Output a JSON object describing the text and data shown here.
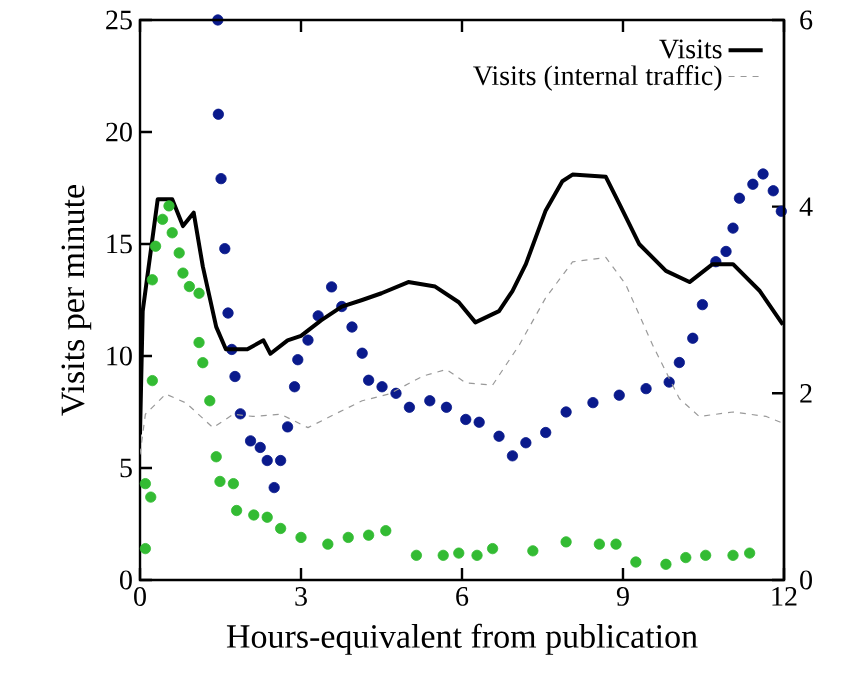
{
  "chart_data": {
    "type": "line",
    "xlabel": "Hours-equivalent from publication",
    "ylabel": "Visits per minute",
    "xlim": [
      0,
      12
    ],
    "xticks": [
      0,
      3,
      6,
      9,
      12
    ],
    "ylim": [
      0,
      25
    ],
    "yticks": [
      0,
      5,
      10,
      15,
      20,
      25
    ],
    "y2lim": [
      0,
      6
    ],
    "y2ticks": [
      0,
      2,
      4,
      6
    ],
    "legend": "top right",
    "grid": false,
    "series": [
      {
        "name": "Visits",
        "color": "#000000",
        "line_style": "solid",
        "marker": "none",
        "x": [
          0,
          0.05,
          0.33,
          0.6,
          0.8,
          1.0,
          1.17,
          1.42,
          1.6,
          2.0,
          2.3,
          2.43,
          2.75,
          3.0,
          3.38,
          3.76,
          4.14,
          4.5,
          5.0,
          5.5,
          5.94,
          6.25,
          6.69,
          6.94,
          7.19,
          7.56,
          7.87,
          8.06,
          8.68,
          8.93,
          9.3,
          9.8,
          10.24,
          10.67,
          11.05,
          11.55,
          11.98
        ],
        "values": [
          6.5,
          12,
          17,
          17,
          15.8,
          16.4,
          14,
          11.3,
          10.3,
          10.3,
          10.7,
          10.1,
          10.7,
          10.9,
          11.6,
          12.2,
          12.5,
          12.8,
          13.3,
          13.1,
          12.4,
          11.5,
          12.0,
          12.9,
          14.1,
          16.5,
          17.8,
          18.1,
          18.0,
          16.8,
          15.0,
          13.8,
          13.3,
          14.1,
          14.1,
          12.9,
          11.4
        ]
      },
      {
        "name": "Visits (internal traffic)",
        "color": "#999999",
        "line_style": "dashed",
        "marker": "none",
        "x": [
          0,
          0.1,
          0.48,
          0.86,
          1.36,
          1.74,
          2.1,
          2.62,
          3.13,
          3.63,
          4.14,
          4.64,
          5.27,
          5.71,
          6.07,
          6.57,
          7.07,
          7.56,
          8.06,
          8.68,
          9.05,
          9.55,
          10.05,
          10.42,
          11.05,
          11.67,
          11.98
        ],
        "values": [
          5.6,
          7.4,
          8.3,
          7.9,
          6.8,
          7.4,
          7.3,
          7.4,
          6.8,
          7.4,
          8.0,
          8.3,
          9.1,
          9.4,
          8.8,
          8.7,
          10.5,
          12.6,
          14.2,
          14.4,
          13.2,
          10.5,
          8.1,
          7.3,
          7.5,
          7.3,
          7.0
        ]
      },
      {
        "type": "scatter",
        "color": "#33bb33",
        "marker": "circle",
        "x": [
          0.1,
          0.1,
          0.2,
          0.23,
          0.23,
          0.29,
          0.42,
          0.54,
          0.6,
          0.73,
          0.8,
          0.92,
          1.1,
          1.1,
          1.17,
          1.3,
          1.42,
          1.49,
          1.74,
          1.8,
          2.12,
          2.37,
          2.62,
          3.0,
          3.5,
          3.88,
          4.26,
          4.58,
          5.15,
          5.65,
          5.94,
          6.28,
          6.57,
          7.32,
          7.94,
          8.56,
          8.87,
          9.24,
          9.8,
          10.17,
          10.54,
          11.05,
          11.36
        ],
        "values": [
          1.4,
          4.3,
          3.7,
          8.9,
          13.4,
          14.9,
          16.1,
          16.7,
          15.5,
          14.6,
          13.7,
          13.1,
          12.8,
          10.6,
          9.7,
          8.0,
          5.5,
          4.4,
          4.3,
          3.1,
          2.9,
          2.8,
          2.3,
          1.9,
          1.6,
          1.9,
          2.0,
          2.2,
          1.1,
          1.1,
          1.2,
          1.1,
          1.4,
          1.3,
          1.7,
          1.6,
          1.6,
          0.8,
          0.7,
          1.0,
          1.1,
          1.1,
          1.2
        ]
      },
      {
        "type": "scatter",
        "color": "#0a1a8c",
        "marker": "circle",
        "axis": "y2",
        "x": [
          1.45,
          1.46,
          1.51,
          1.58,
          1.64,
          1.71,
          1.77,
          1.87,
          2.06,
          2.24,
          2.37,
          2.5,
          2.62,
          2.75,
          2.88,
          2.94,
          3.13,
          3.32,
          3.57,
          3.76,
          3.95,
          4.14,
          4.26,
          4.51,
          4.77,
          5.02,
          5.4,
          5.71,
          6.07,
          6.32,
          6.69,
          6.94,
          7.19,
          7.56,
          7.94,
          8.44,
          8.93,
          9.43,
          9.86,
          10.05,
          10.3,
          10.48,
          10.73,
          10.92,
          11.05,
          11.17,
          11.42,
          11.61,
          11.8,
          11.95
        ],
        "values": [
          6.0,
          4.99,
          4.3,
          3.55,
          2.86,
          2.47,
          2.18,
          1.78,
          1.49,
          1.42,
          1.28,
          0.99,
          1.28,
          1.64,
          2.07,
          2.36,
          2.57,
          2.83,
          3.14,
          2.93,
          2.71,
          2.43,
          2.14,
          2.07,
          2.0,
          1.85,
          1.92,
          1.85,
          1.72,
          1.69,
          1.54,
          1.33,
          1.47,
          1.58,
          1.8,
          1.9,
          1.98,
          2.05,
          2.12,
          2.33,
          2.59,
          2.95,
          3.41,
          3.52,
          3.77,
          4.09,
          4.24,
          4.35,
          4.17,
          3.95
        ]
      }
    ]
  }
}
